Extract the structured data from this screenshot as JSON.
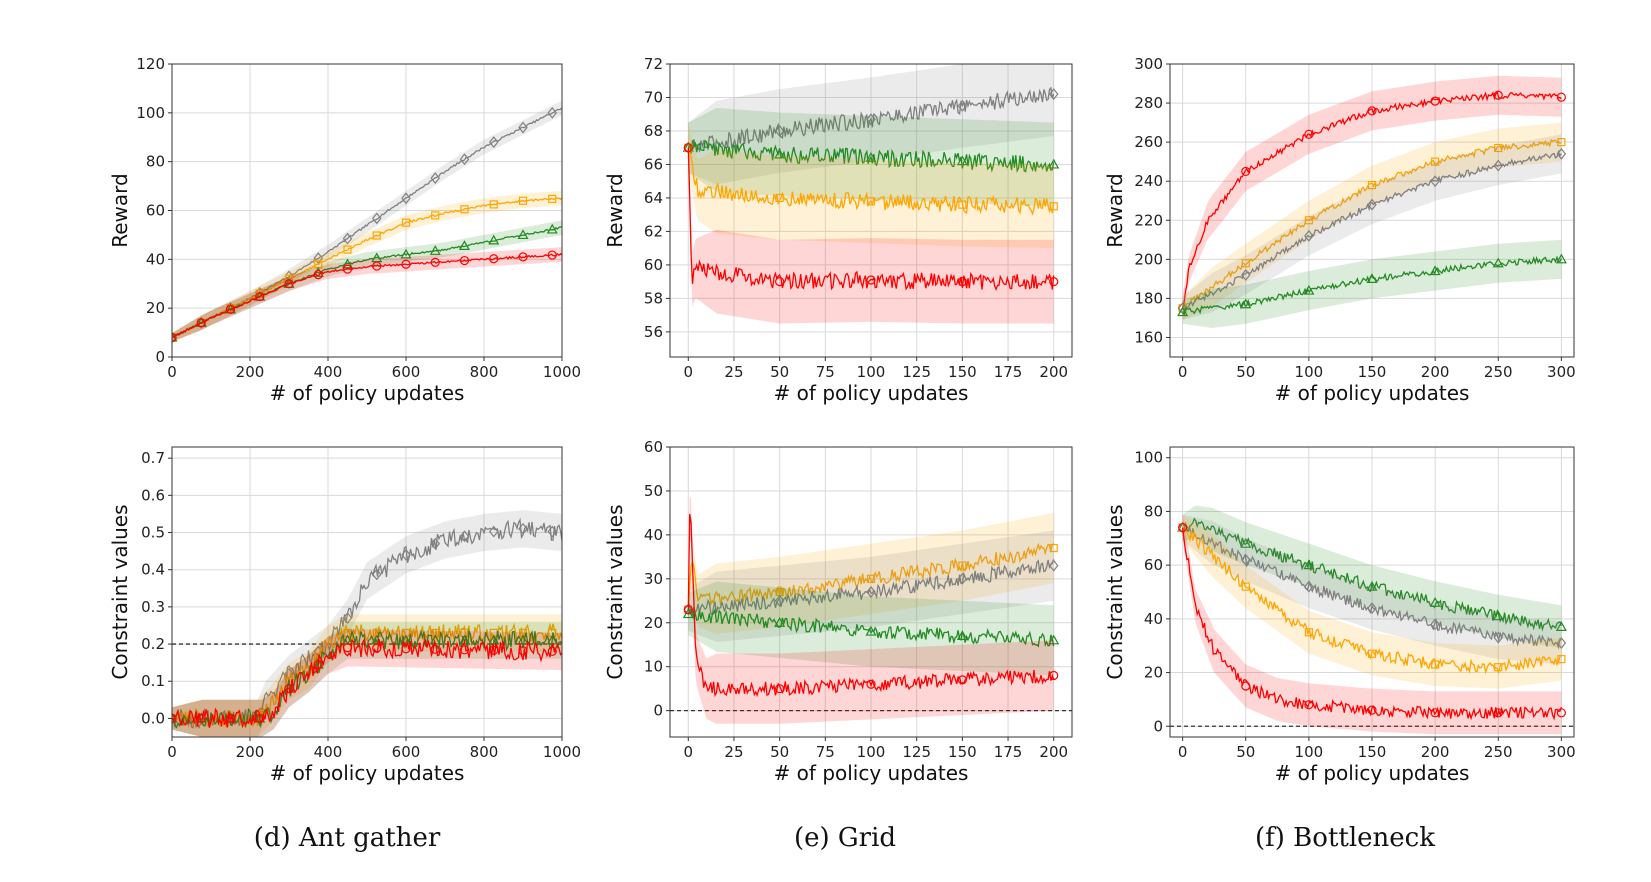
{
  "colors": {
    "baseline_a": "#808080",
    "baseline_b": "#ffa500",
    "baseline_c": "#228b22",
    "proposed": "#ff0000",
    "threshold": "#333333"
  },
  "captions": [
    "(d) Ant gather",
    "(e) Grid",
    "(f) Bottleneck"
  ],
  "chart_data": [
    {
      "type": "line",
      "ylabel": "Reward",
      "xlabel": "# of policy updates",
      "xlim": [
        0,
        1000
      ],
      "ylim": [
        0,
        120
      ],
      "xticks": [
        0,
        200,
        400,
        600,
        800,
        1000
      ],
      "yticks": [
        0,
        20,
        40,
        60,
        80,
        100,
        120
      ],
      "grid": true,
      "noise": 0.4,
      "marker_every": 75,
      "band_width": 3,
      "series": [
        {
          "color": "#808080",
          "marker": "diamond",
          "x": [
            0,
            100,
            200,
            300,
            400,
            500,
            600,
            700,
            800,
            900,
            1000
          ],
          "y": [
            8,
            16,
            24,
            33,
            43,
            54,
            65,
            76,
            86,
            94,
            102
          ]
        },
        {
          "color": "#ffa500",
          "marker": "square",
          "x": [
            0,
            100,
            200,
            300,
            400,
            500,
            600,
            700,
            800,
            900,
            1000
          ],
          "y": [
            8,
            16,
            24,
            32,
            40,
            48,
            55,
            59,
            62,
            64,
            65
          ]
        },
        {
          "color": "#228b22",
          "marker": "triangle",
          "x": [
            0,
            100,
            200,
            300,
            400,
            500,
            600,
            700,
            800,
            900,
            1000
          ],
          "y": [
            8,
            16,
            23,
            30,
            36,
            40,
            42,
            44,
            47,
            50,
            53
          ]
        },
        {
          "color": "#ff0000",
          "marker": "circle",
          "x": [
            0,
            100,
            200,
            300,
            400,
            500,
            600,
            700,
            800,
            900,
            1000
          ],
          "y": [
            8,
            16,
            23,
            30,
            35,
            37,
            38,
            39,
            40,
            41,
            42
          ]
        }
      ]
    },
    {
      "type": "line",
      "ylabel": "Reward",
      "xlabel": "# of policy updates",
      "xlim": [
        -10,
        210
      ],
      "ylim": [
        54.5,
        72
      ],
      "xticks": [
        0,
        25,
        50,
        75,
        100,
        125,
        150,
        175,
        200
      ],
      "yticks": [
        56,
        58,
        60,
        62,
        64,
        66,
        68,
        70,
        72
      ],
      "grid": true,
      "noise": 0.5,
      "marker_every": 50,
      "band_width": 2.5,
      "series": [
        {
          "color": "#808080",
          "marker": "diamond",
          "x": [
            0,
            50,
            100,
            150,
            200
          ],
          "y": [
            67,
            68,
            68.7,
            69.5,
            70.2
          ]
        },
        {
          "color": "#228b22",
          "marker": "triangle",
          "x": [
            0,
            50,
            100,
            150,
            200
          ],
          "y": [
            67,
            66.6,
            66.4,
            66.2,
            66
          ]
        },
        {
          "color": "#ffa500",
          "marker": "square",
          "x": [
            0,
            5,
            50,
            100,
            150,
            200
          ],
          "y": [
            67,
            64.5,
            64,
            63.8,
            63.6,
            63.5
          ]
        },
        {
          "color": "#ff0000",
          "marker": "circle",
          "x": [
            0,
            2,
            4,
            50,
            100,
            150,
            200
          ],
          "y": [
            67,
            59,
            59.8,
            59,
            59.1,
            59,
            59
          ]
        }
      ]
    },
    {
      "type": "line",
      "ylabel": "Reward",
      "xlabel": "# of policy updates",
      "xlim": [
        -10,
        310
      ],
      "ylim": [
        150,
        300
      ],
      "xticks": [
        0,
        50,
        100,
        150,
        200,
        250,
        300
      ],
      "yticks": [
        160,
        180,
        200,
        220,
        240,
        260,
        280,
        300
      ],
      "grid": true,
      "noise": 1.6,
      "marker_every": 50,
      "band_width": 10,
      "series": [
        {
          "color": "#ff0000",
          "marker": "circle",
          "x": [
            0,
            5,
            20,
            50,
            100,
            150,
            200,
            250,
            300
          ],
          "y": [
            175,
            195,
            220,
            245,
            264,
            276,
            281,
            284,
            283
          ]
        },
        {
          "color": "#ffa500",
          "marker": "square",
          "x": [
            0,
            50,
            100,
            150,
            200,
            250,
            300
          ],
          "y": [
            175,
            198,
            220,
            238,
            250,
            257,
            260
          ]
        },
        {
          "color": "#808080",
          "marker": "diamond",
          "x": [
            0,
            50,
            100,
            150,
            200,
            250,
            300
          ],
          "y": [
            175,
            192,
            212,
            228,
            240,
            248,
            254
          ]
        },
        {
          "color": "#228b22",
          "marker": "triangle",
          "x": [
            0,
            50,
            100,
            150,
            200,
            250,
            300
          ],
          "y": [
            173,
            177,
            184,
            190,
            194,
            198,
            200
          ]
        }
      ]
    },
    {
      "type": "line",
      "ylabel": "Constraint values",
      "xlabel": "# of policy updates",
      "xlim": [
        0,
        1000
      ],
      "ylim": [
        -0.05,
        0.73
      ],
      "xticks": [
        0,
        200,
        400,
        600,
        800,
        1000
      ],
      "yticks": [
        0.0,
        0.1,
        0.2,
        0.3,
        0.4,
        0.5,
        0.6,
        0.7
      ],
      "ytick_decimals": 1,
      "threshold": 0.2,
      "grid": true,
      "noise": 0.025,
      "marker_every": 75,
      "band_width": 0.05,
      "series": [
        {
          "color": "#808080",
          "marker": "diamond",
          "x": [
            0,
            220,
            240,
            300,
            350,
            400,
            450,
            500,
            600,
            700,
            800,
            900,
            1000
          ],
          "y": [
            0,
            0,
            0.05,
            0.12,
            0.16,
            0.2,
            0.27,
            0.37,
            0.44,
            0.48,
            0.5,
            0.51,
            0.5
          ]
        },
        {
          "color": "#ffa500",
          "marker": "square",
          "x": [
            0,
            220,
            240,
            300,
            350,
            400,
            450,
            1000
          ],
          "y": [
            0,
            0,
            0.02,
            0.1,
            0.13,
            0.2,
            0.23,
            0.23
          ]
        },
        {
          "color": "#228b22",
          "marker": "triangle",
          "x": [
            0,
            230,
            260,
            300,
            350,
            400,
            450,
            1000
          ],
          "y": [
            0,
            0,
            0.02,
            0.08,
            0.12,
            0.17,
            0.21,
            0.21
          ]
        },
        {
          "color": "#ff0000",
          "marker": "circle",
          "x": [
            0,
            230,
            260,
            300,
            350,
            400,
            450,
            1000
          ],
          "y": [
            0,
            0,
            0.02,
            0.08,
            0.12,
            0.17,
            0.19,
            0.18
          ]
        }
      ]
    },
    {
      "type": "line",
      "ylabel": "Constraint values",
      "xlabel": "# of policy updates",
      "xlim": [
        -10,
        210
      ],
      "ylim": [
        -6,
        60
      ],
      "xticks": [
        0,
        25,
        50,
        75,
        100,
        125,
        150,
        175,
        200
      ],
      "yticks": [
        0,
        10,
        20,
        30,
        40,
        50,
        60
      ],
      "threshold": 0,
      "grid": true,
      "noise": 1.6,
      "marker_every": 50,
      "band_width": 8,
      "series": [
        {
          "color": "#ffa500",
          "marker": "square",
          "x": [
            0,
            2,
            5,
            50,
            100,
            150,
            200
          ],
          "y": [
            23,
            35,
            25,
            27,
            30,
            33,
            37
          ]
        },
        {
          "color": "#808080",
          "marker": "diamond",
          "x": [
            0,
            50,
            100,
            150,
            200
          ],
          "y": [
            23,
            25,
            27,
            30,
            33
          ]
        },
        {
          "color": "#228b22",
          "marker": "triangle",
          "x": [
            0,
            50,
            100,
            150,
            200
          ],
          "y": [
            22,
            20,
            18,
            17,
            16
          ]
        },
        {
          "color": "#ff0000",
          "marker": "circle",
          "x": [
            0,
            1,
            4,
            10,
            50,
            100,
            150,
            200
          ],
          "y": [
            23,
            50,
            12,
            5,
            5,
            6,
            7,
            8
          ]
        }
      ]
    },
    {
      "type": "line",
      "ylabel": "Constraint values",
      "xlabel": "# of policy updates",
      "xlim": [
        -10,
        310
      ],
      "ylim": [
        -4,
        104
      ],
      "xticks": [
        0,
        50,
        100,
        150,
        200,
        250,
        300
      ],
      "yticks": [
        0,
        20,
        40,
        60,
        80,
        100
      ],
      "threshold": 0,
      "grid": true,
      "noise": 2.2,
      "marker_every": 50,
      "band_width": 8,
      "series": [
        {
          "color": "#228b22",
          "marker": "triangle",
          "x": [
            0,
            10,
            50,
            100,
            150,
            200,
            250,
            300
          ],
          "y": [
            74,
            76,
            68,
            60,
            52,
            46,
            41,
            37
          ]
        },
        {
          "color": "#808080",
          "marker": "diamond",
          "x": [
            0,
            50,
            100,
            150,
            200,
            250,
            300
          ],
          "y": [
            74,
            62,
            52,
            44,
            38,
            33,
            31
          ]
        },
        {
          "color": "#ffa500",
          "marker": "square",
          "x": [
            0,
            50,
            100,
            150,
            200,
            250,
            300
          ],
          "y": [
            74,
            52,
            35,
            27,
            23,
            22,
            25
          ]
        },
        {
          "color": "#ff0000",
          "marker": "circle",
          "x": [
            0,
            10,
            25,
            50,
            75,
            100,
            150,
            200,
            250,
            300
          ],
          "y": [
            74,
            45,
            28,
            15,
            10,
            8,
            6,
            5,
            5,
            5
          ]
        }
      ]
    }
  ]
}
